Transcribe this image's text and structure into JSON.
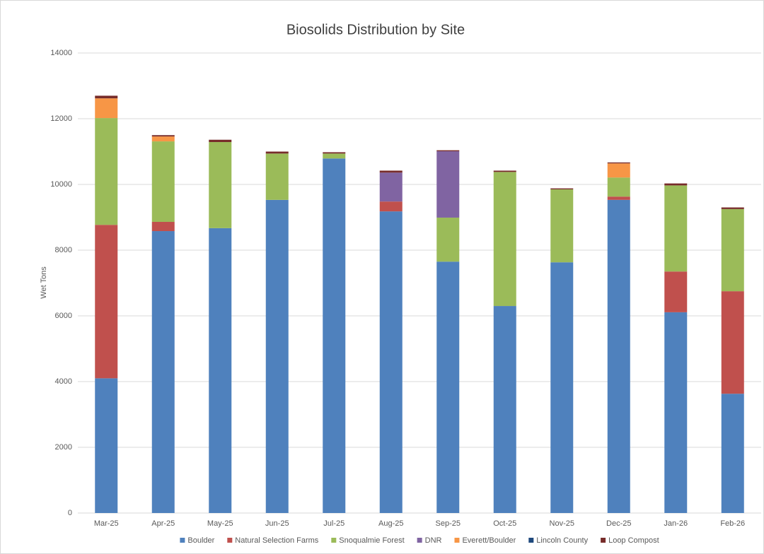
{
  "chart_data": {
    "type": "stacked_bar",
    "title": "Biosolids Distribution by Site",
    "y_label": "Wet Tons",
    "categories": [
      "Mar-25",
      "Apr-25",
      "May-25",
      "Jun-25",
      "Jul-25",
      "Aug-25",
      "Sep-25",
      "Oct-25",
      "Nov-25",
      "Dec-25",
      "Jan-26",
      "Feb-26"
    ],
    "series": [
      {
        "name": "Boulder",
        "color": "#4f81bd",
        "values": [
          4100,
          8580,
          8670,
          9530,
          10790,
          9180,
          7650,
          6300,
          7630,
          9530,
          6110,
          3630
        ]
      },
      {
        "name": "Natural Selection Farms",
        "color": "#c0504d",
        "values": [
          4670,
          280,
          0,
          0,
          0,
          300,
          0,
          0,
          0,
          100,
          1240,
          3120
        ]
      },
      {
        "name": "Snoqualmie Forest",
        "color": "#9bbb59",
        "values": [
          3250,
          2450,
          2620,
          1410,
          150,
          0,
          1340,
          4080,
          2220,
          580,
          2620,
          2500
        ]
      },
      {
        "name": "DNR",
        "color": "#8064a2",
        "values": [
          0,
          0,
          0,
          0,
          0,
          880,
          2020,
          0,
          0,
          0,
          0,
          0
        ]
      },
      {
        "name": "Everett/Boulder",
        "color": "#f79646",
        "values": [
          600,
          150,
          0,
          0,
          0,
          0,
          0,
          0,
          0,
          430,
          0,
          0
        ]
      },
      {
        "name": "Lincoln County",
        "color": "#1f497d",
        "values": [
          0,
          0,
          0,
          0,
          0,
          0,
          0,
          0,
          0,
          0,
          0,
          0
        ]
      },
      {
        "name": "Loop Compost",
        "color": "#772c2a",
        "values": [
          80,
          40,
          70,
          60,
          40,
          60,
          30,
          40,
          30,
          30,
          60,
          50
        ]
      }
    ],
    "ylim": [
      0,
      14000
    ],
    "yticks": [
      0,
      2000,
      4000,
      6000,
      8000,
      10000,
      12000,
      14000
    ],
    "grid": true,
    "legend": "bottom"
  }
}
